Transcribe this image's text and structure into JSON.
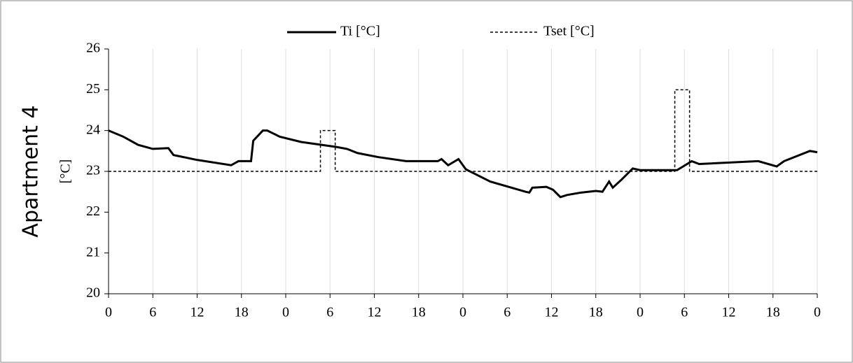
{
  "chart_data": {
    "type": "line",
    "side_title": "Apartment 4",
    "y_label": "[°C]",
    "xlim": [
      0,
      96
    ],
    "xticks": [
      0,
      6,
      12,
      18,
      {
        "value": 24,
        "label": "0"
      },
      {
        "value": 30,
        "label": "6"
      },
      {
        "value": 36,
        "label": "12"
      },
      {
        "value": 42,
        "label": "18"
      },
      {
        "value": 48,
        "label": "0"
      },
      {
        "value": 54,
        "label": "6"
      },
      {
        "value": 60,
        "label": "12"
      },
      {
        "value": 66,
        "label": "18"
      },
      {
        "value": 72,
        "label": "0"
      },
      {
        "value": 78,
        "label": "6"
      },
      {
        "value": 84,
        "label": "12"
      },
      {
        "value": 90,
        "label": "18"
      },
      {
        "value": 96,
        "label": "0"
      }
    ],
    "ylim": [
      20,
      26
    ],
    "yticks": [
      20,
      21,
      22,
      23,
      24,
      25,
      26
    ],
    "grid": true,
    "legend": "top",
    "series": [
      {
        "name": "Ti [°C]",
        "color": "#000000",
        "dash": false,
        "x": [
          0,
          2,
          4,
          6,
          8.1,
          8.8,
          12,
          16.6,
          17.6,
          19.3,
          19.6,
          20.9,
          21.5,
          23.2,
          26.1,
          30.8,
          32.3,
          33.7,
          36.5,
          40.3,
          44.6,
          45.1,
          46,
          47.4,
          48.4,
          51.7,
          56.5,
          57,
          57.4,
          59.3,
          60.2,
          61.2,
          62.1,
          64,
          66,
          66.9,
          67.8,
          68.3,
          69.5,
          71,
          72,
          77,
          79,
          80,
          88,
          90.5,
          91.5,
          95,
          96
        ],
        "values": [
          24.0,
          23.85,
          23.65,
          23.55,
          23.57,
          23.4,
          23.28,
          23.15,
          23.25,
          23.25,
          23.75,
          24.0,
          24.0,
          23.85,
          23.72,
          23.6,
          23.55,
          23.45,
          23.35,
          23.25,
          23.25,
          23.3,
          23.15,
          23.3,
          23.05,
          22.75,
          22.5,
          22.48,
          22.6,
          22.62,
          22.55,
          22.37,
          22.42,
          22.48,
          22.52,
          22.5,
          22.75,
          22.6,
          22.8,
          23.07,
          23.03,
          23.03,
          23.25,
          23.18,
          23.25,
          23.12,
          23.25,
          23.5,
          23.47
        ]
      },
      {
        "name": "Tset [°C]",
        "color": "#000000",
        "dash": true,
        "x": [
          0,
          28.7,
          28.7,
          30.7,
          30.7,
          76.7,
          76.7,
          78.7,
          78.7,
          96
        ],
        "values": [
          23,
          23,
          24,
          24,
          23,
          23,
          25,
          25,
          23,
          23
        ]
      }
    ]
  }
}
